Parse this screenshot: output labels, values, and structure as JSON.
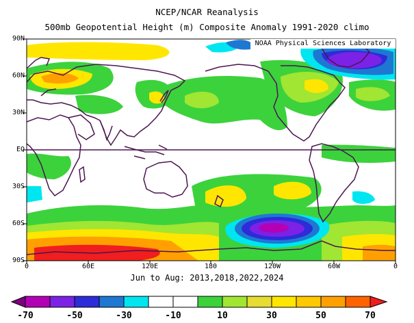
{
  "title": {
    "line1": "NCEP/NCAR Reanalysis",
    "line2": "500mb Geopotential Height (m) Composite Anomaly 1991-2020 climo"
  },
  "badge": "NOAA Physical Sciences Laboratory",
  "footer": "Jun to Aug: 2013,2018,2022,2024",
  "map": {
    "lat_labels": [
      "90N",
      "60N",
      "30N",
      "EQ",
      "30S",
      "60S",
      "90S"
    ],
    "lon_labels": [
      "0",
      "60E",
      "120E",
      "180",
      "120W",
      "60W",
      "0"
    ],
    "projection": "cylindrical equidistant, 0 to 360 longitude"
  },
  "colorbar": {
    "labels": [
      "-70",
      "-50",
      "-30",
      "-10",
      "10",
      "30",
      "50",
      "70"
    ],
    "colors": [
      "#7f007f",
      "#b400b4",
      "#7b22e6",
      "#2c2cd8",
      "#1e78d2",
      "#00e6f0",
      "#ffffff",
      "#ffffff",
      "#3cd23c",
      "#a0e632",
      "#e6dc32",
      "#ffe600",
      "#ffc800",
      "#ffa000",
      "#ff6400",
      "#f01e1e"
    ]
  }
}
